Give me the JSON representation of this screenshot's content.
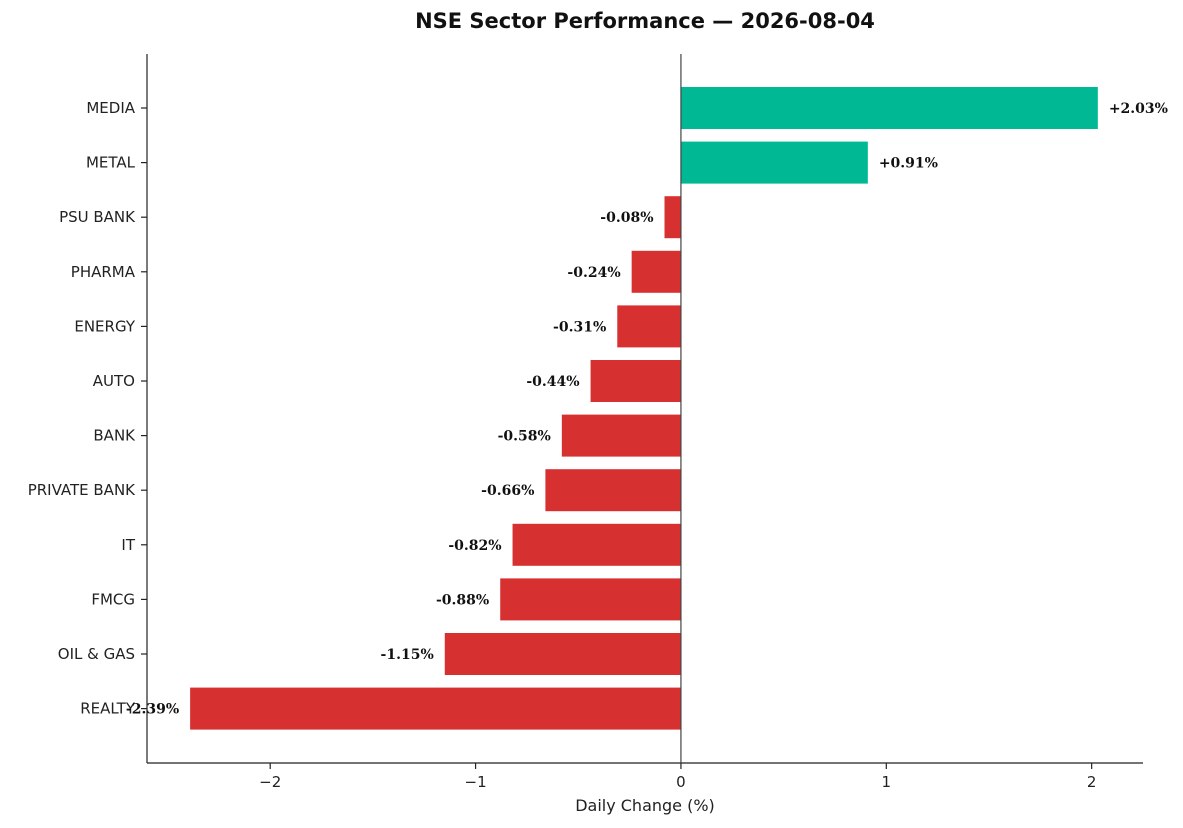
{
  "chart_data": {
    "type": "bar",
    "orientation": "horizontal",
    "title": "NSE Sector Performance — 2026-08-04",
    "xlabel": "Daily Change (%)",
    "ylabel": "",
    "xlim": [
      -2.6,
      2.25
    ],
    "xticks": [
      -2,
      -1,
      0,
      1,
      2
    ],
    "xtick_labels": [
      "−2",
      "−1",
      "0",
      "1",
      "2"
    ],
    "categories": [
      "MEDIA",
      "METAL",
      "PSU BANK",
      "PHARMA",
      "ENERGY",
      "AUTO",
      "BANK",
      "PRIVATE BANK",
      "IT",
      "FMCG",
      "OIL & GAS",
      "REALTY"
    ],
    "values": [
      2.03,
      0.91,
      -0.08,
      -0.24,
      -0.31,
      -0.44,
      -0.58,
      -0.66,
      -0.82,
      -0.88,
      -1.15,
      -2.39
    ],
    "data_labels": [
      "+2.03%",
      "+0.91%",
      "-0.08%",
      "-0.24%",
      "-0.31%",
      "-0.44%",
      "-0.58%",
      "-0.66%",
      "-0.82%",
      "-0.88%",
      "-1.15%",
      "-2.39%"
    ],
    "colors": {
      "positive": "#00b894",
      "negative": "#d63031",
      "zero_line": "#444444"
    },
    "grid": false,
    "legend": "none"
  }
}
